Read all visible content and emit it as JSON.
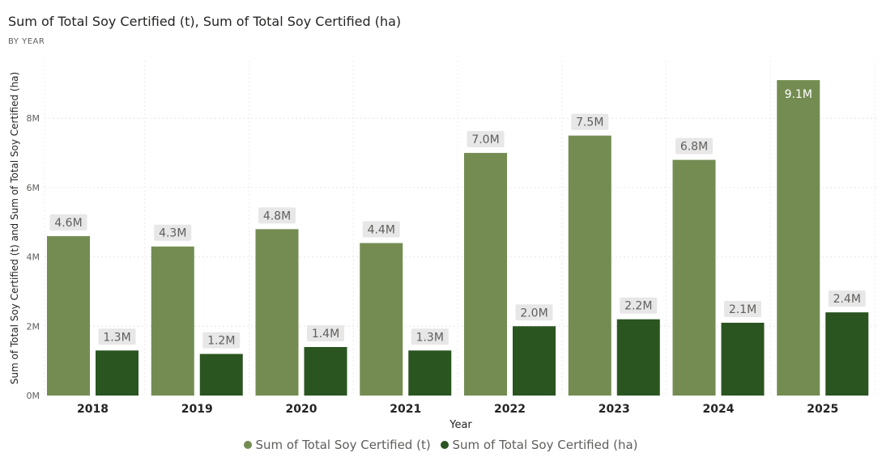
{
  "title": "Sum of Total Soy Certified (t), Sum of Total Soy Certified (ha)",
  "subtitle": "BY YEAR",
  "chart_data": {
    "type": "bar",
    "title": "Sum of Total Soy Certified (t), Sum of Total Soy Certified (ha)",
    "subtitle": "BY YEAR",
    "xlabel": "Year",
    "ylabel": "Sum of Total Soy Certified (t) and Sum of Total Soy Certified (ha)",
    "categories": [
      "2018",
      "2019",
      "2020",
      "2021",
      "2022",
      "2023",
      "2024",
      "2025"
    ],
    "ylim": [
      0,
      10000000
    ],
    "yticks": [
      0,
      2000000,
      4000000,
      6000000,
      8000000
    ],
    "ytick_labels": [
      "0M",
      "2M",
      "4M",
      "6M",
      "8M"
    ],
    "grid": true,
    "legend_position": "bottom",
    "series": [
      {
        "name": "Sum of Total Soy Certified (t)",
        "color": "#748c52",
        "values": [
          4600000,
          4300000,
          4800000,
          4400000,
          7000000,
          7500000,
          6800000,
          9100000
        ],
        "labels": [
          "4.6M",
          "4.3M",
          "4.8M",
          "4.4M",
          "7.0M",
          "7.5M",
          "6.8M",
          "9.1M"
        ]
      },
      {
        "name": "Sum of Total Soy Certified (ha)",
        "color": "#2a5520",
        "values": [
          1300000,
          1200000,
          1400000,
          1300000,
          2000000,
          2200000,
          2100000,
          2400000
        ],
        "labels": [
          "1.3M",
          "1.2M",
          "1.4M",
          "1.3M",
          "2.0M",
          "2.2M",
          "2.1M",
          "2.4M"
        ]
      }
    ]
  }
}
